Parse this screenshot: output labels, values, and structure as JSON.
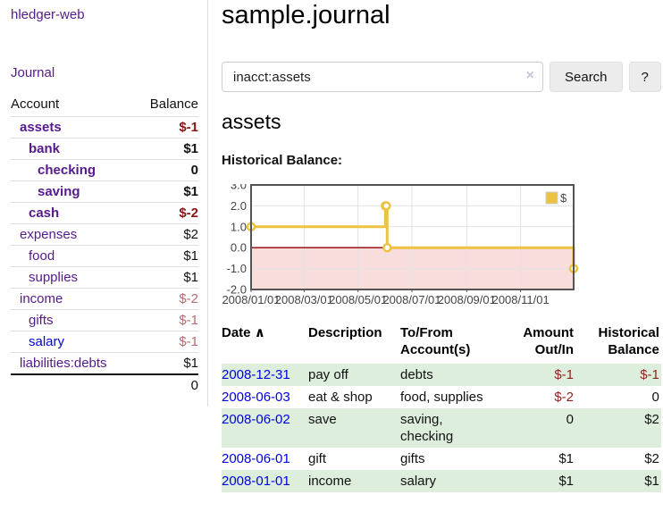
{
  "app": {
    "title": "hledger-web"
  },
  "sidebar": {
    "journal_link": "Journal",
    "accounts_table": {
      "headers": [
        "Account",
        "Balance"
      ],
      "rows": [
        {
          "account": "assets",
          "balance": "$-1",
          "indent": 1,
          "bold": true,
          "balance_class": "neg-strong"
        },
        {
          "account": "bank",
          "balance": "$1",
          "indent": 2,
          "bold": true,
          "balance_class": ""
        },
        {
          "account": "checking",
          "balance": "0",
          "indent": 3,
          "bold": true,
          "balance_class": ""
        },
        {
          "account": "saving",
          "balance": "$1",
          "indent": 3,
          "bold": true,
          "balance_class": ""
        },
        {
          "account": "cash",
          "balance": "$-2",
          "indent": 2,
          "bold": true,
          "balance_class": "neg-strong"
        },
        {
          "account": "expenses",
          "balance": "$2",
          "indent": 1,
          "bold": false,
          "balance_class": ""
        },
        {
          "account": "food",
          "balance": "$1",
          "indent": 2,
          "bold": false,
          "balance_class": ""
        },
        {
          "account": "supplies",
          "balance": "$1",
          "indent": 2,
          "bold": false,
          "balance_class": ""
        },
        {
          "account": "income",
          "balance": "$-2",
          "indent": 1,
          "bold": false,
          "balance_class": "neg-soft"
        },
        {
          "account": "gifts",
          "balance": "$-1",
          "indent": 2,
          "bold": false,
          "balance_class": "neg-soft"
        },
        {
          "account": "salary",
          "balance": "$-1",
          "indent": 2,
          "bold": false,
          "balance_class": "neg-soft",
          "link_class": "blue"
        },
        {
          "account": "liabilities:debts",
          "balance": "$1",
          "indent": 1,
          "bold": false,
          "balance_class": ""
        }
      ],
      "total": "0"
    }
  },
  "main": {
    "title": "sample.journal",
    "search": {
      "value": "inacct:assets",
      "clear_icon": "×",
      "search_button": "Search",
      "help_button": "?"
    },
    "account_heading": "assets",
    "chart_heading": "Historical Balance:"
  },
  "chart_data": {
    "type": "line",
    "style": "step",
    "title": "Historical Balance:",
    "series": [
      {
        "name": "$",
        "color": "#edc240",
        "points": [
          {
            "date": "2008-01-01",
            "day": 0,
            "value": 1
          },
          {
            "date": "2008-06-01",
            "day": 152,
            "value": 2
          },
          {
            "date": "2008-06-02",
            "day": 153,
            "value": 2
          },
          {
            "date": "2008-06-03",
            "day": 154,
            "value": 0
          },
          {
            "date": "2008-12-31",
            "day": 365,
            "value": -1
          }
        ]
      }
    ],
    "x_ticks": [
      {
        "label": "2008/01/01",
        "day": 0
      },
      {
        "label": "2008/03/01",
        "day": 60
      },
      {
        "label": "2008/05/01",
        "day": 121
      },
      {
        "label": "2008/07/01",
        "day": 182
      },
      {
        "label": "2008/09/01",
        "day": 244
      },
      {
        "label": "2008/11/01",
        "day": 305
      }
    ],
    "y_ticks": [
      {
        "label": "3.0",
        "value": 3
      },
      {
        "label": "2.0",
        "value": 2
      },
      {
        "label": "1.0",
        "value": 1
      },
      {
        "label": "0.0",
        "value": 0
      },
      {
        "label": "-1.0",
        "value": -1
      },
      {
        "label": "-2.0",
        "value": -2
      }
    ],
    "x_range_days": [
      0,
      365
    ],
    "ylim": [
      -2,
      3
    ],
    "grid": true,
    "legend": {
      "label": "$",
      "position": "top-right"
    },
    "colors": {
      "line": "#edc240",
      "marker_fill": "#ffffff",
      "negative_fill": "#f9dcdc",
      "zero_line": "#8b0000",
      "border": "#545454",
      "gridline": "#e3e3e3",
      "tick_text": "#444444"
    }
  },
  "register": {
    "sort_icon": "∧",
    "headers": {
      "date": "Date",
      "description": "Description",
      "accounts": "To/From Account(s)",
      "amount": "Amount Out/In",
      "balance": "Historical Balance"
    },
    "rows": [
      {
        "date": "2008-12-31",
        "description": "pay off",
        "accounts": "debts",
        "amount": "$-1",
        "amount_class": "neg",
        "balance": "$-1",
        "balance_class": "neg"
      },
      {
        "date": "2008-06-03",
        "description": "eat & shop",
        "accounts": "food, supplies",
        "amount": "$-2",
        "amount_class": "neg",
        "balance": "0",
        "balance_class": ""
      },
      {
        "date": "2008-06-02",
        "description": "save",
        "accounts": "saving, checking",
        "amount": "0",
        "amount_class": "",
        "balance": "$2",
        "balance_class": ""
      },
      {
        "date": "2008-06-01",
        "description": "gift",
        "accounts": "gifts",
        "amount": "$1",
        "amount_class": "",
        "balance": "$2",
        "balance_class": ""
      },
      {
        "date": "2008-01-01",
        "description": "income",
        "accounts": "salary",
        "amount": "$1",
        "amount_class": "",
        "balance": "$1",
        "balance_class": ""
      }
    ]
  },
  "colors": {
    "link_purple": "#551a8b",
    "link_blue": "#0000e0",
    "negative_strong": "#8b1414",
    "negative_soft": "#b26e6e",
    "negative_table": "#941f1f",
    "row_stripe_green": "#ddeedd"
  }
}
